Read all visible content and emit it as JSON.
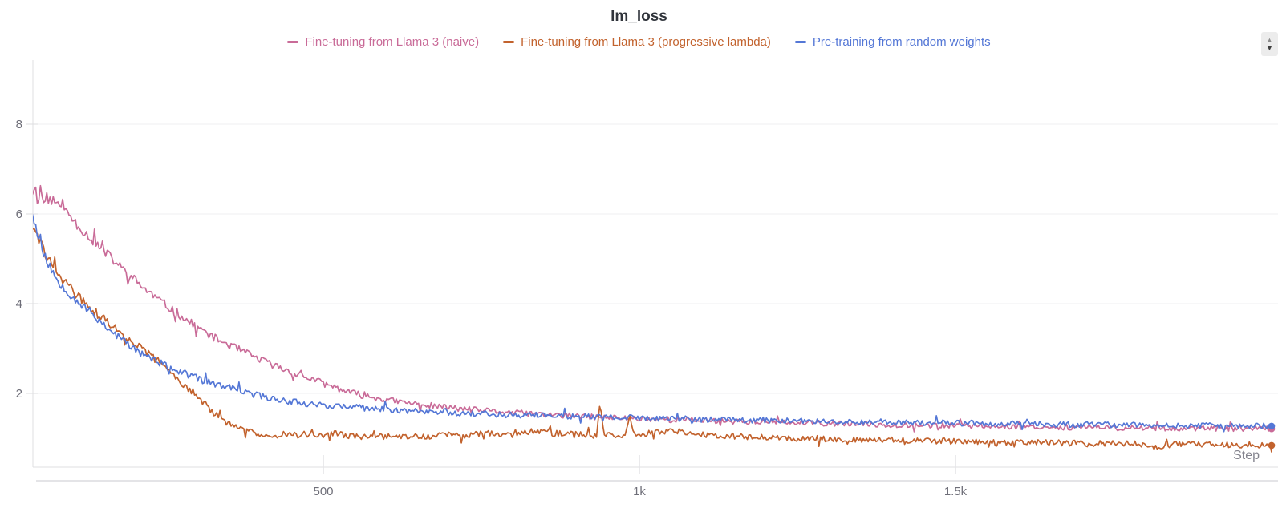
{
  "title": "lm_loss",
  "stepper": {
    "up_icon": "▲",
    "down_icon": "▼"
  },
  "legend": {
    "items": [
      {
        "label": "Fine-tuning from Llama 3 (naive)",
        "color": "#c96b98"
      },
      {
        "label": "Fine-tuning from Llama 3 (progressive lambda)",
        "color": "#c2622d"
      },
      {
        "label": "Pre-training from random weights",
        "color": "#5477d6"
      }
    ]
  },
  "chart_data": {
    "type": "line",
    "title": "lm_loss",
    "xlabel": "Step",
    "ylabel": "",
    "grid": "horizontal-only",
    "legend_position": "top-center",
    "x_range": [
      40,
      2000
    ],
    "y_view_range": [
      0.45,
      9.4
    ],
    "x_ticks": [
      {
        "value": 500,
        "label": "500"
      },
      {
        "value": 1000,
        "label": "1k"
      },
      {
        "value": 1500,
        "label": "1.5k"
      }
    ],
    "y_ticks": [
      {
        "value": 2,
        "label": "2"
      },
      {
        "value": 4,
        "label": "4"
      },
      {
        "value": 6,
        "label": "6"
      },
      {
        "value": 8,
        "label": "8"
      }
    ],
    "series": [
      {
        "name": "Fine-tuning from Llama 3 (naive)",
        "color": "#c96b98",
        "end_dot": true,
        "seed": 11,
        "noise_base": 0.045,
        "noise_per_value": 0.013,
        "points": [
          [
            40,
            6.5
          ],
          [
            44,
            6.62
          ],
          [
            48,
            6.3
          ],
          [
            53,
            6.58
          ],
          [
            58,
            6.22
          ],
          [
            63,
            6.45
          ],
          [
            68,
            6.18
          ],
          [
            73,
            6.38
          ],
          [
            79,
            6.12
          ],
          [
            86,
            6.3
          ],
          [
            93,
            6.05
          ],
          [
            100,
            5.95
          ],
          [
            110,
            5.78
          ],
          [
            122,
            5.6
          ],
          [
            135,
            5.42
          ],
          [
            150,
            5.2
          ],
          [
            166,
            5.0
          ],
          [
            180,
            4.8
          ],
          [
            195,
            4.62
          ],
          [
            210,
            4.42
          ],
          [
            225,
            4.25
          ],
          [
            240,
            4.08
          ],
          [
            255,
            3.92
          ],
          [
            270,
            3.78
          ],
          [
            285,
            3.62
          ],
          [
            300,
            3.48
          ],
          [
            315,
            3.35
          ],
          [
            330,
            3.22
          ],
          [
            345,
            3.12
          ],
          [
            360,
            3.02
          ],
          [
            378,
            2.9
          ],
          [
            396,
            2.78
          ],
          [
            414,
            2.67
          ],
          [
            432,
            2.57
          ],
          [
            450,
            2.47
          ],
          [
            468,
            2.38
          ],
          [
            486,
            2.3
          ],
          [
            504,
            2.2
          ],
          [
            522,
            2.12
          ],
          [
            540,
            2.03
          ],
          [
            558,
            1.97
          ],
          [
            576,
            1.92
          ],
          [
            594,
            1.87
          ],
          [
            612,
            1.83
          ],
          [
            632,
            1.79
          ],
          [
            655,
            1.75
          ],
          [
            680,
            1.71
          ],
          [
            710,
            1.67
          ],
          [
            740,
            1.63
          ],
          [
            770,
            1.6
          ],
          [
            800,
            1.57
          ],
          [
            830,
            1.55
          ],
          [
            860,
            1.52
          ],
          [
            890,
            1.5
          ],
          [
            920,
            1.48
          ],
          [
            950,
            1.46
          ],
          [
            1000,
            1.44
          ],
          [
            1050,
            1.42
          ],
          [
            1100,
            1.4
          ],
          [
            1150,
            1.38
          ],
          [
            1200,
            1.36
          ],
          [
            1250,
            1.34
          ],
          [
            1300,
            1.33
          ],
          [
            1350,
            1.31
          ],
          [
            1400,
            1.3
          ],
          [
            1450,
            1.29
          ],
          [
            1500,
            1.28
          ],
          [
            1550,
            1.27
          ],
          [
            1600,
            1.26
          ],
          [
            1650,
            1.25
          ],
          [
            1700,
            1.24
          ],
          [
            1750,
            1.23
          ],
          [
            1800,
            1.23
          ],
          [
            1850,
            1.22
          ],
          [
            1900,
            1.22
          ],
          [
            1950,
            1.21
          ],
          [
            2000,
            1.21
          ]
        ]
      },
      {
        "name": "Fine-tuning from Llama 3 (progressive lambda)",
        "color": "#c2622d",
        "end_dot": true,
        "seed": 29,
        "noise_base": 0.055,
        "noise_per_value": 0.012,
        "points": [
          [
            40,
            5.72
          ],
          [
            45,
            5.55
          ],
          [
            50,
            5.4
          ],
          [
            55,
            5.27
          ],
          [
            60,
            5.12
          ],
          [
            66,
            4.98
          ],
          [
            72,
            4.85
          ],
          [
            78,
            4.72
          ],
          [
            85,
            4.6
          ],
          [
            92,
            4.48
          ],
          [
            100,
            4.35
          ],
          [
            108,
            4.22
          ],
          [
            118,
            4.08
          ],
          [
            128,
            3.95
          ],
          [
            140,
            3.8
          ],
          [
            152,
            3.66
          ],
          [
            164,
            3.52
          ],
          [
            176,
            3.39
          ],
          [
            188,
            3.26
          ],
          [
            200,
            3.13
          ],
          [
            212,
            3.0
          ],
          [
            224,
            2.87
          ],
          [
            236,
            2.74
          ],
          [
            248,
            2.6
          ],
          [
            260,
            2.45
          ],
          [
            272,
            2.3
          ],
          [
            284,
            2.15
          ],
          [
            296,
            2.0
          ],
          [
            308,
            1.83
          ],
          [
            320,
            1.65
          ],
          [
            332,
            1.5
          ],
          [
            344,
            1.38
          ],
          [
            356,
            1.28
          ],
          [
            368,
            1.2
          ],
          [
            382,
            1.15
          ],
          [
            400,
            1.1
          ],
          [
            420,
            1.08
          ],
          [
            440,
            1.1
          ],
          [
            460,
            1.06
          ],
          [
            480,
            1.05
          ],
          [
            500,
            1.08
          ],
          [
            520,
            1.1
          ],
          [
            540,
            1.05
          ],
          [
            560,
            1.03
          ],
          [
            580,
            1.05
          ],
          [
            600,
            1.04
          ],
          [
            620,
            1.02
          ],
          [
            640,
            1.05
          ],
          [
            660,
            1.03
          ],
          [
            680,
            1.06
          ],
          [
            700,
            1.08
          ],
          [
            720,
            1.06
          ],
          [
            740,
            1.09
          ],
          [
            760,
            1.11
          ],
          [
            780,
            1.09
          ],
          [
            800,
            1.11
          ],
          [
            820,
            1.14
          ],
          [
            840,
            1.16
          ],
          [
            860,
            1.13
          ],
          [
            880,
            1.1
          ],
          [
            900,
            1.09
          ],
          [
            920,
            1.07
          ],
          [
            932,
            1.06
          ],
          [
            938,
            1.8
          ],
          [
            944,
            1.1
          ],
          [
            960,
            1.07
          ],
          [
            978,
            1.06
          ],
          [
            985,
            1.52
          ],
          [
            992,
            1.06
          ],
          [
            1010,
            1.1
          ],
          [
            1030,
            1.13
          ],
          [
            1050,
            1.15
          ],
          [
            1070,
            1.13
          ],
          [
            1090,
            1.1
          ],
          [
            1110,
            1.08
          ],
          [
            1130,
            1.06
          ],
          [
            1160,
            1.04
          ],
          [
            1200,
            1.02
          ],
          [
            1240,
            1.0
          ],
          [
            1280,
            0.99
          ],
          [
            1320,
            0.98
          ],
          [
            1360,
            0.97
          ],
          [
            1400,
            0.96
          ],
          [
            1450,
            0.95
          ],
          [
            1500,
            0.93
          ],
          [
            1550,
            0.92
          ],
          [
            1600,
            0.91
          ],
          [
            1650,
            0.9
          ],
          [
            1700,
            0.89
          ],
          [
            1750,
            0.88
          ],
          [
            1800,
            0.87
          ],
          [
            1822,
            0.76
          ],
          [
            1844,
            0.87
          ],
          [
            1880,
            0.86
          ],
          [
            1920,
            0.85
          ],
          [
            1960,
            0.85
          ],
          [
            2000,
            0.84
          ]
        ]
      },
      {
        "name": "Pre-training from random weights",
        "color": "#5477d6",
        "end_dot": true,
        "seed": 53,
        "noise_base": 0.05,
        "noise_per_value": 0.012,
        "points": [
          [
            40,
            6.05
          ],
          [
            43,
            5.85
          ],
          [
            46,
            5.65
          ],
          [
            50,
            5.45
          ],
          [
            54,
            5.28
          ],
          [
            58,
            5.12
          ],
          [
            63,
            4.95
          ],
          [
            68,
            4.8
          ],
          [
            74,
            4.65
          ],
          [
            80,
            4.52
          ],
          [
            87,
            4.42
          ],
          [
            94,
            4.3
          ],
          [
            100,
            4.2
          ],
          [
            108,
            4.1
          ],
          [
            118,
            3.97
          ],
          [
            128,
            3.85
          ],
          [
            140,
            3.7
          ],
          [
            152,
            3.55
          ],
          [
            164,
            3.4
          ],
          [
            176,
            3.27
          ],
          [
            188,
            3.13
          ],
          [
            200,
            3.0
          ],
          [
            212,
            2.9
          ],
          [
            224,
            2.8
          ],
          [
            236,
            2.72
          ],
          [
            248,
            2.63
          ],
          [
            260,
            2.56
          ],
          [
            274,
            2.48
          ],
          [
            288,
            2.4
          ],
          [
            302,
            2.33
          ],
          [
            316,
            2.26
          ],
          [
            330,
            2.2
          ],
          [
            348,
            2.13
          ],
          [
            366,
            2.06
          ],
          [
            384,
            2.0
          ],
          [
            402,
            1.94
          ],
          [
            420,
            1.89
          ],
          [
            440,
            1.84
          ],
          [
            460,
            1.8
          ],
          [
            480,
            1.77
          ],
          [
            500,
            1.74
          ],
          [
            525,
            1.71
          ],
          [
            550,
            1.69
          ],
          [
            575,
            1.66
          ],
          [
            600,
            1.64
          ],
          [
            630,
            1.62
          ],
          [
            660,
            1.6
          ],
          [
            690,
            1.58
          ],
          [
            720,
            1.56
          ],
          [
            750,
            1.55
          ],
          [
            780,
            1.53
          ],
          [
            810,
            1.52
          ],
          [
            840,
            1.51
          ],
          [
            870,
            1.5
          ],
          [
            900,
            1.49
          ],
          [
            950,
            1.47
          ],
          [
            1000,
            1.45
          ],
          [
            1050,
            1.44
          ],
          [
            1100,
            1.42
          ],
          [
            1150,
            1.41
          ],
          [
            1200,
            1.4
          ],
          [
            1250,
            1.39
          ],
          [
            1300,
            1.38
          ],
          [
            1350,
            1.37
          ],
          [
            1400,
            1.36
          ],
          [
            1450,
            1.35
          ],
          [
            1500,
            1.34
          ],
          [
            1550,
            1.33
          ],
          [
            1600,
            1.32
          ],
          [
            1650,
            1.31
          ],
          [
            1700,
            1.3
          ],
          [
            1750,
            1.3
          ],
          [
            1800,
            1.29
          ],
          [
            1850,
            1.28
          ],
          [
            1900,
            1.28
          ],
          [
            1950,
            1.27
          ],
          [
            2000,
            1.27
          ]
        ]
      }
    ]
  }
}
